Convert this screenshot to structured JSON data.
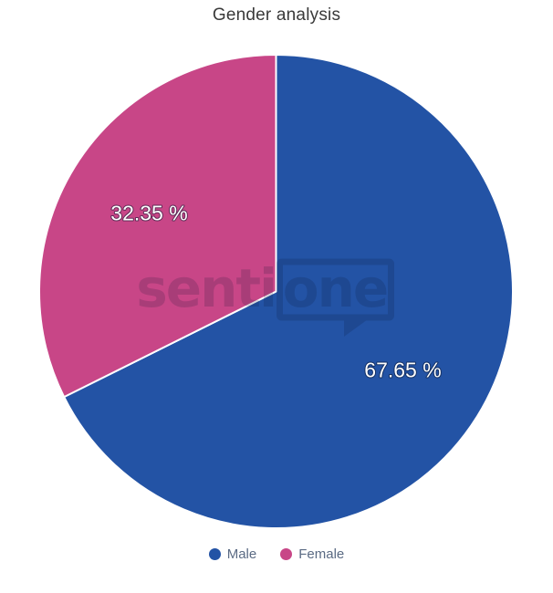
{
  "chart_data": {
    "type": "pie",
    "title": "Gender analysis",
    "start_angle_deg": 0,
    "direction": "clockwise",
    "legend_position": "bottom",
    "slice_border_color": "#ffffff",
    "slices": [
      {
        "label": "Male",
        "value": 67.65,
        "display": "67.65 %",
        "color": "#2353A5"
      },
      {
        "label": "Female",
        "value": 32.35,
        "display": "32.35 %",
        "color": "#C84687"
      }
    ]
  },
  "legend": {
    "items": [
      {
        "label": "Male",
        "color": "#2353A5"
      },
      {
        "label": "Female",
        "color": "#C84687"
      }
    ]
  },
  "watermark": {
    "left_text": "senti",
    "bubble_text": "one",
    "color": "#0A1530"
  }
}
